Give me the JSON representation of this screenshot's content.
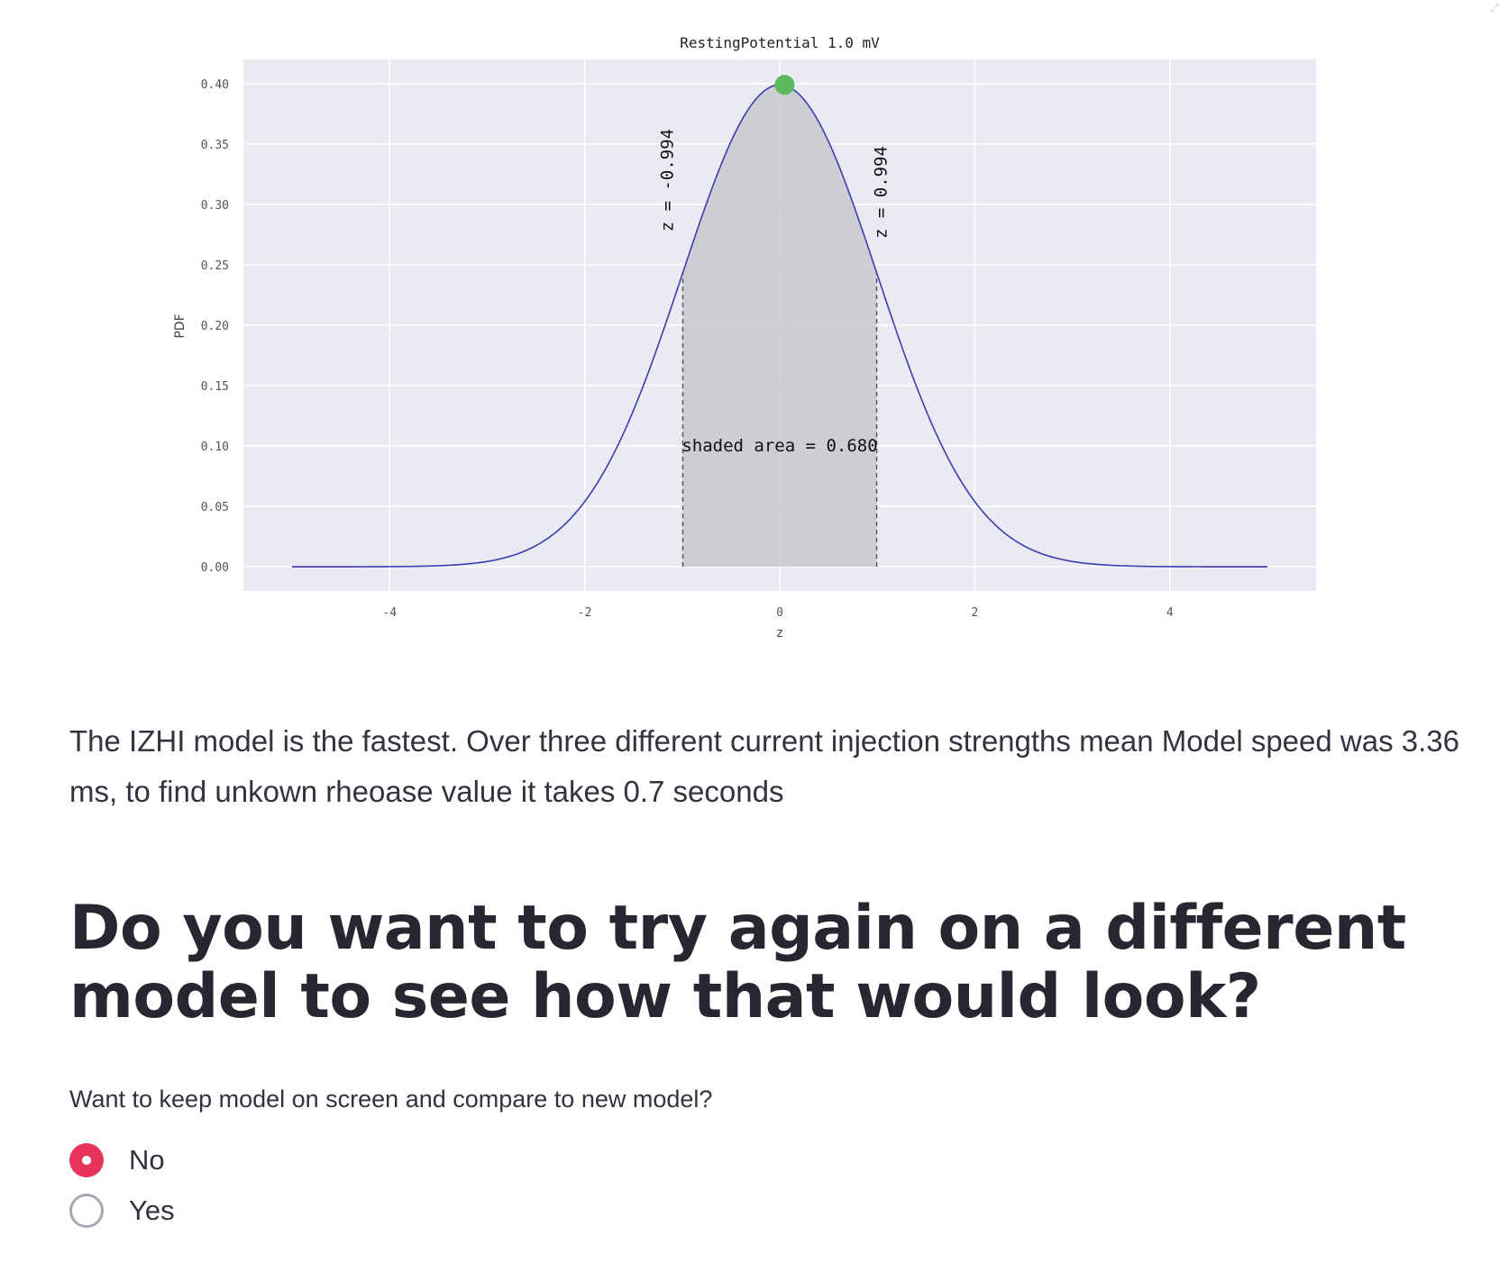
{
  "chart_data": {
    "type": "line",
    "title": "RestingPotential 1.0 mV",
    "xlabel": "z",
    "ylabel": "PDF",
    "xlim": [
      -5.5,
      5.5
    ],
    "ylim": [
      -0.02,
      0.42
    ],
    "xticks": [
      -4,
      -2,
      0,
      2,
      4
    ],
    "yticks": [
      0.0,
      0.05,
      0.1,
      0.15,
      0.2,
      0.25,
      0.3,
      0.35,
      0.4
    ],
    "ytick_labels": [
      "0.00",
      "0.05",
      "0.10",
      "0.15",
      "0.20",
      "0.25",
      "0.30",
      "0.35",
      "0.40"
    ],
    "xtick_labels": [
      "-4",
      "-2",
      "0",
      "2",
      "4"
    ],
    "grid": true,
    "curve": {
      "distribution": "standard normal pdf",
      "x_range": [
        -5,
        5
      ],
      "color": "#3a3fb0"
    },
    "peak_marker": {
      "x": 0.05,
      "y": 0.399,
      "color": "#5cb85c"
    },
    "shaded_region": {
      "from": -0.994,
      "to": 0.994,
      "area": 0.68,
      "color": "#c8c8cf"
    },
    "annotations": {
      "left_line": "z = -0.994",
      "right_line": "z = 0.994",
      "area_label": "shaded area = 0.680"
    },
    "background": "#eaeaf2"
  },
  "summary": {
    "text": "The IZHI model is the fastest. Over three different current injection strengths mean Model speed was 3.36 ms, to find unkown rheoase value it takes 0.7 seconds"
  },
  "question": {
    "heading": "Do you want to try again on a different model to see how that would look?"
  },
  "compare_radio": {
    "label": "Want to keep model on screen and compare to new model?",
    "options": [
      {
        "label": "No",
        "selected": true
      },
      {
        "label": "Yes",
        "selected": false
      }
    ],
    "accent_color": "#e8345a"
  },
  "icons": {
    "expand": "expand-icon"
  }
}
